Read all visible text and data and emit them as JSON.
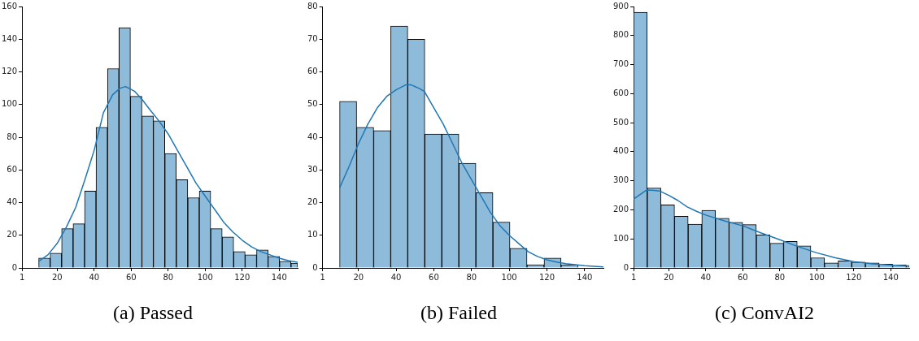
{
  "chart_data": [
    {
      "type": "histogram",
      "title": "(a) Passed",
      "bins": [
        10,
        16.2,
        22.4,
        28.6,
        34.8,
        41,
        47.2,
        53.4,
        59.6,
        65.8,
        72,
        78.2,
        84.4,
        90.6,
        96.8,
        103,
        109.2,
        115.4,
        121.6,
        127.8,
        134,
        140.2,
        146.4,
        150
      ],
      "values": [
        6,
        9,
        24,
        27,
        47,
        86,
        122,
        147,
        105,
        93,
        90,
        70,
        54,
        43,
        47,
        24,
        19,
        10,
        8,
        11,
        7,
        4,
        3
      ],
      "color": "#8fbbda",
      "series": [
        {
          "type": "line",
          "color": "#1f77b4",
          "x": [
            10,
            15,
            20,
            25,
            30,
            35,
            40,
            45,
            50,
            54,
            57,
            62,
            66,
            70,
            75,
            80,
            85,
            90,
            95,
            100,
            105,
            110,
            115,
            120,
            125,
            130,
            135,
            140,
            145,
            150
          ],
          "values": [
            4,
            8,
            15,
            25,
            37,
            54,
            72,
            95,
            106,
            110,
            111,
            108,
            103,
            97,
            90,
            82,
            72,
            62,
            52,
            44,
            36,
            28,
            22,
            17,
            13,
            10,
            8,
            6,
            4.5,
            3.5
          ]
        }
      ],
      "xlim": [
        1,
        150
      ],
      "xticks": [
        1,
        20,
        40,
        60,
        80,
        100,
        120,
        140
      ],
      "ylim": [
        0,
        160
      ],
      "yticks": [
        0,
        20,
        40,
        60,
        80,
        100,
        120,
        140,
        160
      ],
      "grid": false
    },
    {
      "type": "histogram",
      "title": "(b) Failed",
      "bins": [
        10,
        19.04,
        28.08,
        37.12,
        46.16,
        55.2,
        64.24,
        73.28,
        82.32,
        91.36,
        100.4,
        109.44,
        118.48,
        127.52,
        136.56
      ],
      "values": [
        51,
        43,
        42,
        74,
        70,
        41,
        41,
        32,
        23,
        14,
        6,
        1,
        3,
        1
      ],
      "color": "#8fbbda",
      "series": [
        {
          "type": "line",
          "color": "#1f77b4",
          "x": [
            10,
            15,
            20,
            25,
            30,
            35,
            40,
            45,
            48,
            52,
            55,
            60,
            65,
            70,
            75,
            80,
            85,
            90,
            95,
            100,
            105,
            110,
            115,
            120,
            125,
            130,
            140,
            150
          ],
          "values": [
            24.5,
            31,
            38,
            44,
            49,
            52.5,
            54.5,
            56,
            56,
            55,
            54,
            49,
            44,
            38,
            32,
            27,
            22,
            17,
            13,
            10,
            7.5,
            5,
            3.5,
            2.5,
            1.8,
            1.3,
            0.7,
            0.3
          ]
        }
      ],
      "xlim": [
        1,
        150
      ],
      "xticks": [
        1,
        20,
        40,
        60,
        80,
        100,
        120,
        140
      ],
      "ylim": [
        0,
        80
      ],
      "yticks": [
        0,
        10,
        20,
        30,
        40,
        50,
        60,
        70,
        80
      ],
      "grid": false
    },
    {
      "type": "histogram",
      "title": "(c) ConvAI2",
      "bins": [
        1,
        8.37,
        15.74,
        23.11,
        30.48,
        37.85,
        45.22,
        52.59,
        59.96,
        67.33,
        74.7,
        82.07,
        89.44,
        96.81,
        104.18,
        111.55,
        118.92,
        126.29,
        133.66,
        141.03,
        148.4,
        150
      ],
      "values": [
        880,
        275,
        217,
        178,
        151,
        198,
        171,
        157,
        149,
        114,
        85,
        91,
        76,
        35,
        17,
        24,
        20,
        17,
        13,
        10,
        8
      ],
      "color": "#8fbbda",
      "series": [
        {
          "type": "line",
          "color": "#1f77b4",
          "x": [
            1,
            5,
            8,
            12,
            15,
            20,
            25,
            30,
            35,
            40,
            50,
            60,
            70,
            80,
            90,
            100,
            110,
            120,
            130,
            140,
            150
          ],
          "values": [
            237,
            255,
            268,
            267,
            265,
            250,
            232,
            210,
            195,
            182,
            162,
            145,
            120,
            97,
            73,
            52,
            35,
            22,
            14,
            10,
            7
          ]
        }
      ],
      "xlim": [
        1,
        150
      ],
      "xticks": [
        1,
        20,
        40,
        60,
        80,
        100,
        120,
        140
      ],
      "ylim": [
        0,
        900
      ],
      "yticks": [
        0,
        100,
        200,
        300,
        400,
        500,
        600,
        700,
        800,
        900
      ],
      "grid": false
    }
  ]
}
